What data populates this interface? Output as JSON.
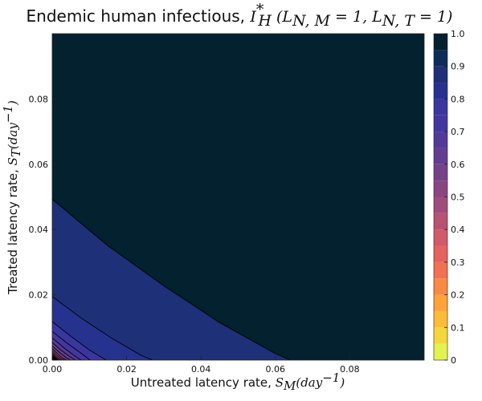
{
  "chart_data": {
    "type": "contour",
    "title": {
      "text": "Endemic human infectious, ",
      "math": "I",
      "math_sup": "*",
      "math_sub": "H",
      "math_args": "(L",
      "arg1_sub": "N, M",
      "arg1_eq": " = 1, L",
      "arg2_sub": "N, T",
      "arg2_eq": " = 1)"
    },
    "xlabel": {
      "text": "Untreated latency rate, ",
      "math": "S",
      "math_sub": "M",
      "math_rest": "(day",
      "math_sup": "−1",
      "math_end": ")"
    },
    "ylabel": {
      "text": "Treated latency rate, ",
      "math": "S",
      "math_sub": "T",
      "math_rest": "(day",
      "math_sup": "−1",
      "math_end": ")"
    },
    "xlim": [
      0,
      0.1
    ],
    "ylim": [
      0,
      0.1
    ],
    "x_ticks": [
      "0.00",
      "0.02",
      "0.04",
      "0.06",
      "0.08"
    ],
    "x_tick_values": [
      0,
      0.02,
      0.04,
      0.06,
      0.08
    ],
    "y_ticks": [
      "0.00",
      "0.02",
      "0.04",
      "0.06",
      "0.08"
    ],
    "y_tick_values": [
      0,
      0.02,
      0.04,
      0.06,
      0.08
    ],
    "colorbar_ticks": [
      "0",
      "0.1",
      "0.2",
      "0.3",
      "0.4",
      "0.5",
      "0.6",
      "0.7",
      "0.8",
      "0.9",
      "1.0"
    ],
    "colorbar_tick_values": [
      0,
      0.1,
      0.2,
      0.3,
      0.4,
      0.5,
      0.6,
      0.7,
      0.8,
      0.9,
      1.0
    ],
    "levels": [
      0,
      0.05,
      0.1,
      0.15,
      0.2,
      0.25,
      0.3,
      0.35,
      0.4,
      0.45,
      0.5,
      0.55,
      0.6,
      0.65,
      0.7,
      0.75,
      0.8,
      0.85,
      0.9,
      0.95,
      1.0
    ],
    "band_colors": [
      "#e2f250",
      "#f5d73d",
      "#fbbd38",
      "#fca33a",
      "#f98a45",
      "#f07252",
      "#e2635f",
      "#cf5a6a",
      "#b85272",
      "#a04c7a",
      "#8a4681",
      "#764287",
      "#623e90",
      "#523b98",
      "#43379f",
      "#3a36a0",
      "#25338f",
      "#1d3078",
      "#0d2c57",
      "#03212e"
    ],
    "contour_boundaries": [
      {
        "level": 0.9,
        "x": [
          0,
          0.015,
          0.03,
          0.045,
          0.06,
          0.064
        ],
        "y": [
          0.0493,
          0.035,
          0.0228,
          0.0115,
          0.002,
          0
        ]
      },
      {
        "level": 0.85,
        "x": [
          0,
          0.008,
          0.016,
          0.024,
          0.027
        ],
        "y": [
          0.0195,
          0.0127,
          0.0067,
          0.0014,
          0
        ]
      },
      {
        "level": 0.8,
        "x": [
          0,
          0.005,
          0.01,
          0.0145
        ],
        "y": [
          0.0118,
          0.0073,
          0.0031,
          0
        ]
      },
      {
        "level": 0.75,
        "x": [
          0,
          0.004,
          0.008,
          0.0102
        ],
        "y": [
          0.0088,
          0.0052,
          0.0019,
          0
        ]
      },
      {
        "level": 0.7,
        "x": [
          0,
          0.003,
          0.006,
          0.0078
        ],
        "y": [
          0.0068,
          0.0039,
          0.0013,
          0
        ]
      },
      {
        "level": 0.65,
        "x": [
          0,
          0.0024,
          0.0048,
          0.0062
        ],
        "y": [
          0.0054,
          0.003,
          0.001,
          0
        ]
      },
      {
        "level": 0.6,
        "x": [
          0,
          0.002,
          0.0038,
          0.0049
        ],
        "y": [
          0.0043,
          0.0023,
          0.0007,
          0
        ]
      },
      {
        "level": 0.55,
        "x": [
          0,
          0.0016,
          0.003,
          0.0039
        ],
        "y": [
          0.0035,
          0.0018,
          0.0005,
          0
        ]
      },
      {
        "level": 0.5,
        "x": [
          0,
          0.0013,
          0.0025,
          0.0032
        ],
        "y": [
          0.0028,
          0.0014,
          0.0004,
          0
        ]
      },
      {
        "level": 0.45,
        "x": [
          0,
          0.001,
          0.002,
          0.0026
        ],
        "y": [
          0.0023,
          0.0011,
          0.0003,
          0
        ]
      },
      {
        "level": 0.4,
        "x": [
          0,
          0.0008,
          0.0016,
          0.0021
        ],
        "y": [
          0.0019,
          0.0009,
          0.0002,
          0
        ]
      },
      {
        "level": 0.35,
        "x": [
          0,
          0.0007,
          0.0013,
          0.0017
        ],
        "y": [
          0.0015,
          0.0007,
          0.0002,
          0
        ]
      },
      {
        "level": 0.3,
        "x": [
          0,
          0.0006,
          0.0011,
          0.0014
        ],
        "y": [
          0.0012,
          0.0006,
          0.0001,
          0
        ]
      },
      {
        "level": 0.25,
        "x": [
          0,
          0.0005,
          0.0009,
          0.0011
        ],
        "y": [
          0.001,
          0.0005,
          0.0001,
          0
        ]
      },
      {
        "level": 0.2,
        "x": [
          0,
          0.0004,
          0.0007,
          0.0009
        ],
        "y": [
          0.0008,
          0.0004,
          0.0001,
          0
        ]
      },
      {
        "level": 0.15,
        "x": [
          0,
          0.0003,
          0.0006,
          0.0007
        ],
        "y": [
          0.0006,
          0.0003,
          0.0001,
          0
        ]
      },
      {
        "level": 0.1,
        "x": [
          0,
          0.0002,
          0.0004,
          0.0005
        ],
        "y": [
          0.0005,
          0.0002,
          0.0001,
          0
        ]
      },
      {
        "level": 0.05,
        "x": [
          0,
          0.0002,
          0.0003
        ],
        "y": [
          0.0003,
          0.0001,
          0
        ]
      }
    ]
  }
}
